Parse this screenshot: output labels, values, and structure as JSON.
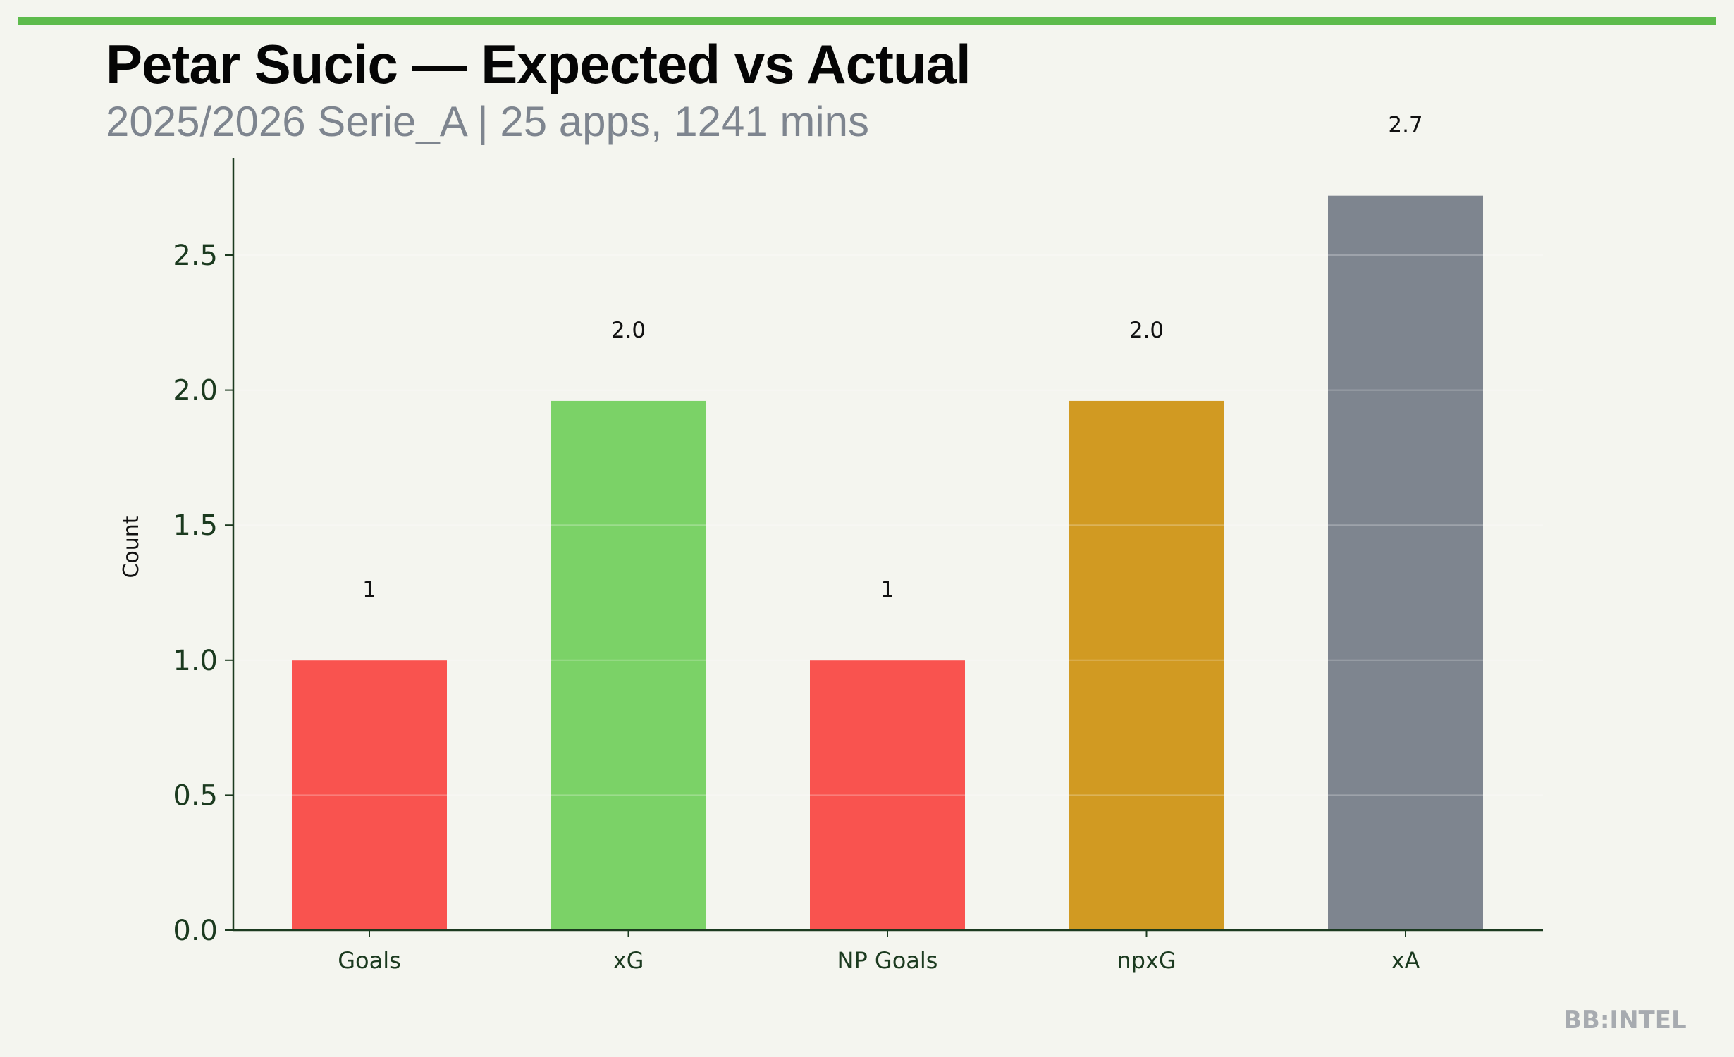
{
  "header": {
    "title": "Petar Sucic — Expected vs Actual",
    "subtitle": "2025/2026 Serie_A | 25 apps, 1241 mins"
  },
  "watermark": "BB:INTEL",
  "colors": {
    "accent": "#5DBB4C",
    "axis": "#1B3A1F",
    "background": "#F4F5EF"
  },
  "chart_data": {
    "type": "bar",
    "title": "Petar Sucic — Expected vs Actual",
    "xlabel": "",
    "ylabel": "Count",
    "ylim": [
      0,
      2.85
    ],
    "yticks": [
      0.0,
      0.5,
      1.0,
      1.5,
      2.0,
      2.5
    ],
    "ytick_labels": [
      "0.0",
      "0.5",
      "1.0",
      "1.5",
      "2.0",
      "2.5"
    ],
    "grid": true,
    "categories": [
      "Goals",
      "xG",
      "NP Goals",
      "npxG",
      "xA"
    ],
    "values": [
      1,
      1.96,
      1,
      1.96,
      2.72
    ],
    "data_labels": [
      "1",
      "2.0",
      "1",
      "2.0",
      "2.7"
    ],
    "bar_colors": [
      "#F9534F",
      "#7BD267",
      "#F9534F",
      "#D19A22",
      "#7E858F"
    ]
  }
}
